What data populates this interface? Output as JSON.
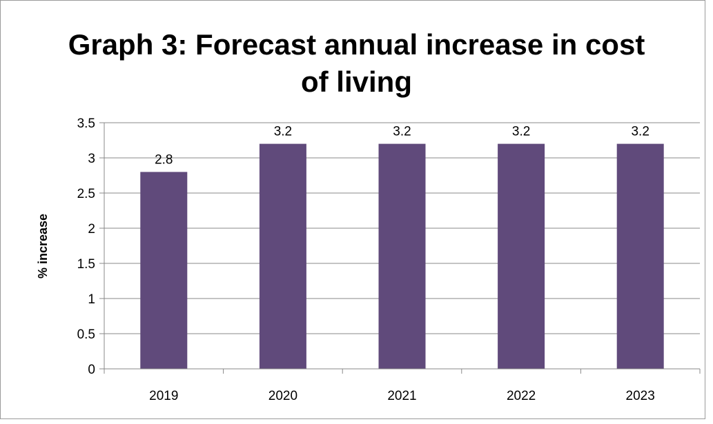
{
  "chart_data": {
    "type": "bar",
    "title_line1": "Graph 3: Forecast annual increase in cost",
    "title_line2": "of living",
    "categories": [
      "2019",
      "2020",
      "2021",
      "2022",
      "2023"
    ],
    "values": [
      2.8,
      3.2,
      3.2,
      3.2,
      3.2
    ],
    "data_labels": [
      "2.8",
      "3.2",
      "3.2",
      "3.2",
      "3.2"
    ],
    "ylabel": "% increase",
    "xlabel": "",
    "ylim": [
      0,
      3.5
    ],
    "yticks": [
      "0",
      "0.5",
      "1",
      "1.5",
      "2",
      "2.5",
      "3",
      "3.5"
    ],
    "grid": true,
    "legend": "none",
    "bar_color": "#604a7b",
    "grid_color": "#888888"
  }
}
